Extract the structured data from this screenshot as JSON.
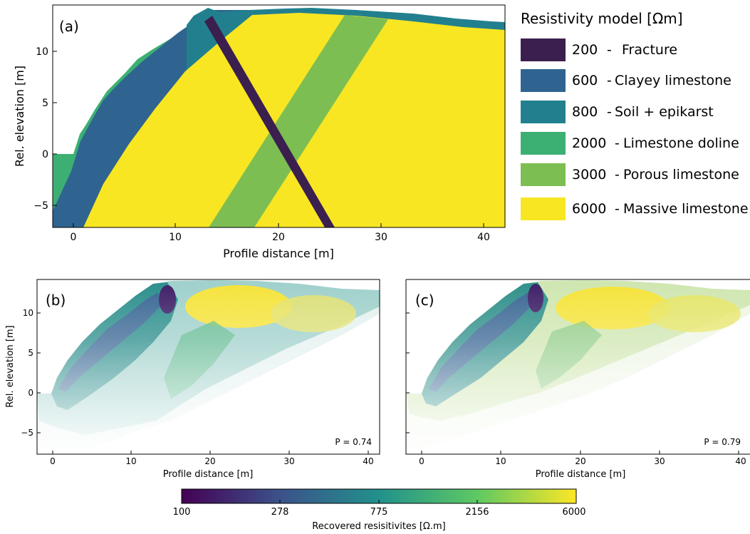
{
  "panels": [
    {
      "label": "(a)",
      "xlabel": "Profile distance [m]",
      "ylabel": "Rel. elevation [m]",
      "xticks": [
        "0",
        "10",
        "20",
        "30",
        "40"
      ],
      "yticks": [
        "10",
        "5",
        "0",
        "−5"
      ],
      "xlim": [
        -2,
        42
      ],
      "ylim": [
        -7,
        14.5
      ]
    },
    {
      "label": "(b)",
      "xlabel": "Profile distance [m]",
      "ylabel": "Rel. elevation [m]",
      "xticks": [
        "0",
        "10",
        "20",
        "30",
        "40"
      ],
      "yticks": [
        "10",
        "5",
        "0",
        "−5"
      ],
      "annotation": "P = 0.74"
    },
    {
      "label": "(c)",
      "xlabel": "Profile distance [m]",
      "xticks": [
        "0",
        "10",
        "20",
        "30",
        "40"
      ],
      "annotation": "P = 0.79"
    }
  ],
  "legend": {
    "title": "Resistivity model [Ωm]",
    "items": [
      {
        "value": "200",
        "name": "Fracture",
        "color": "#3b1f4e"
      },
      {
        "value": "600",
        "name": "Clayey limestone",
        "color": "#2f6491"
      },
      {
        "value": "800",
        "name": "Soil + epikarst",
        "color": "#22808e"
      },
      {
        "value": "2000",
        "name": "Limestone doline",
        "color": "#3cb073"
      },
      {
        "value": "3000",
        "name": "Porous limestone",
        "color": "#7dbe52"
      },
      {
        "value": "6000",
        "name": "Massive limestone",
        "color": "#f8e622"
      }
    ]
  },
  "colorbar": {
    "label": "Recovered resisitivites [Ω.m]",
    "ticks": [
      "100",
      "278",
      "775",
      "2156",
      "6000"
    ],
    "colormap": [
      "#440154",
      "#3b528b",
      "#21918c",
      "#5ec962",
      "#fde725"
    ]
  }
}
